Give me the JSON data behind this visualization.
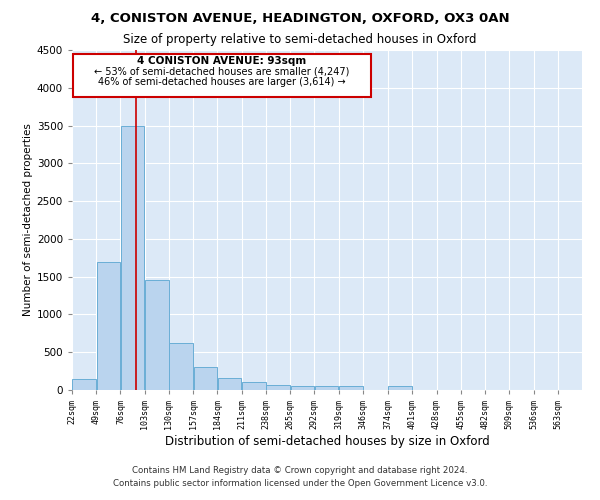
{
  "title1": "4, CONISTON AVENUE, HEADINGTON, OXFORD, OX3 0AN",
  "title2": "Size of property relative to semi-detached houses in Oxford",
  "xlabel": "Distribution of semi-detached houses by size in Oxford",
  "ylabel": "Number of semi-detached properties",
  "footer1": "Contains HM Land Registry data © Crown copyright and database right 2024.",
  "footer2": "Contains public sector information licensed under the Open Government Licence v3.0.",
  "annotation_title": "4 CONISTON AVENUE: 93sqm",
  "annotation_line1": "← 53% of semi-detached houses are smaller (4,247)",
  "annotation_line2": "46% of semi-detached houses are larger (3,614) →",
  "property_size": 93,
  "bin_edges": [
    22,
    49,
    76,
    103,
    130,
    157,
    184,
    211,
    238,
    265,
    292,
    319,
    346,
    374,
    401,
    428,
    455,
    482,
    509,
    536,
    563
  ],
  "bar_heights": [
    140,
    1700,
    3500,
    1450,
    620,
    300,
    160,
    100,
    70,
    50,
    50,
    50,
    0,
    50,
    0,
    0,
    0,
    0,
    0,
    0
  ],
  "bar_color": "#bad4ee",
  "bar_edgecolor": "#6aaed6",
  "red_line_color": "#cc0000",
  "annotation_box_edgecolor": "#cc0000",
  "ylim": [
    0,
    4500
  ],
  "background_color": "#dce9f7",
  "grid_color": "#ffffff",
  "tick_labels": [
    "22sqm",
    "49sqm",
    "76sqm",
    "103sqm",
    "130sqm",
    "157sqm",
    "184sqm",
    "211sqm",
    "238sqm",
    "265sqm",
    "292sqm",
    "319sqm",
    "346sqm",
    "374sqm",
    "401sqm",
    "428sqm",
    "455sqm",
    "482sqm",
    "509sqm",
    "536sqm",
    "563sqm"
  ]
}
